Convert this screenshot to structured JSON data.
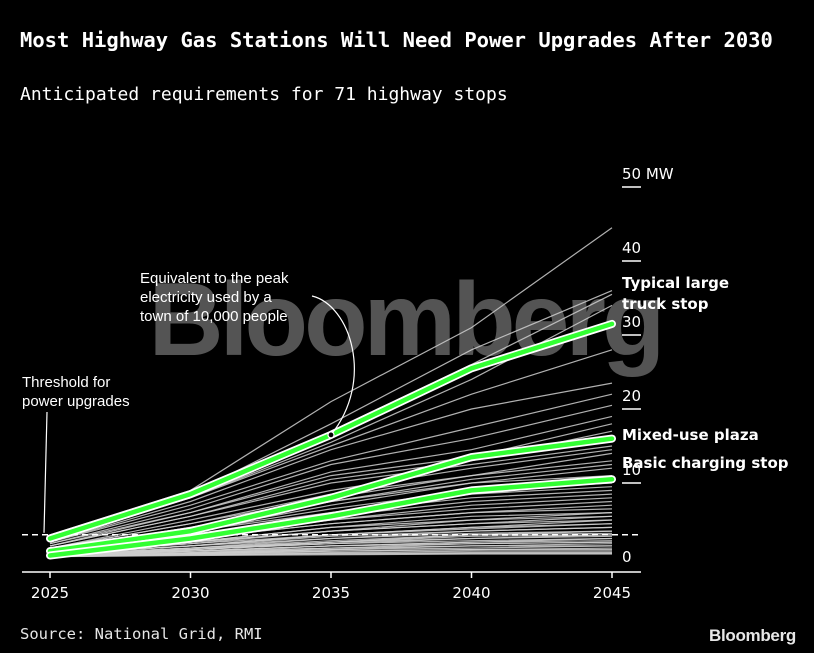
{
  "title": "Most Highway Gas Stations Will Need Power Upgrades After 2030",
  "subtitle": "Anticipated requirements for 71 highway stops",
  "source": "Source: National Grid, RMI",
  "logo": "Bloomberg",
  "watermark": "Bloomberg",
  "colors": {
    "background": "#000000",
    "highlight": "#33ff33",
    "background_lines": "#cfcfcf",
    "text": "#ffffff"
  },
  "chart_data": {
    "type": "line",
    "x": [
      2025,
      2030,
      2035,
      2040,
      2045
    ],
    "ylim": [
      0,
      50
    ],
    "yticks": [
      0,
      10,
      20,
      30,
      40,
      50
    ],
    "ytick_labels": [
      "0",
      "10",
      "20",
      "30",
      "40",
      "50 MW"
    ],
    "xtick_labels": [
      "2025",
      "2030",
      "2035",
      "2040",
      "2045"
    ],
    "threshold": 3,
    "grid": false,
    "highlighted_series": [
      {
        "name": "Typical large truck stop",
        "values": [
          2.5,
          8.5,
          16.5,
          25.5,
          31.5
        ]
      },
      {
        "name": "Mixed-use plaza",
        "values": [
          0.8,
          3.5,
          8,
          13.5,
          16
        ]
      },
      {
        "name": "Basic charging stop",
        "values": [
          0.2,
          2.5,
          5.5,
          9,
          10.5
        ]
      }
    ],
    "background_series": [
      [
        3,
        9,
        21,
        31,
        44.5
      ],
      [
        2.5,
        8.5,
        18,
        28,
        36
      ],
      [
        2.5,
        8,
        17,
        26,
        35.5
      ],
      [
        2.2,
        8,
        15.5,
        24,
        34
      ],
      [
        2,
        8,
        15,
        22,
        28
      ],
      [
        2,
        7.5,
        14.5,
        20,
        23.5
      ],
      [
        2,
        7,
        13,
        17.5,
        22
      ],
      [
        1.8,
        6.5,
        12.5,
        16,
        20.5
      ],
      [
        1.8,
        6,
        11.5,
        14.5,
        19
      ],
      [
        1.5,
        6,
        11,
        13.5,
        18
      ],
      [
        1.5,
        5.5,
        10.5,
        13,
        17
      ],
      [
        1.5,
        5.5,
        10,
        12.5,
        15
      ],
      [
        1.2,
        5,
        9,
        12,
        14.5
      ],
      [
        1.2,
        4.5,
        8.5,
        11,
        14
      ],
      [
        1.2,
        4.5,
        8,
        11,
        13
      ],
      [
        1,
        4,
        7.5,
        10.5,
        12.5
      ],
      [
        1,
        4,
        7.5,
        10,
        12
      ],
      [
        1,
        3.5,
        7,
        10,
        11
      ],
      [
        1,
        3.5,
        6.5,
        9,
        10
      ],
      [
        0.8,
        3.5,
        6,
        8.5,
        9.5
      ],
      [
        0.8,
        3,
        6,
        8,
        9
      ],
      [
        0.8,
        3,
        5.5,
        7.5,
        8.5
      ],
      [
        0.8,
        3,
        5,
        7,
        8
      ],
      [
        0.6,
        2.5,
        5,
        6.5,
        7.5
      ],
      [
        0.6,
        2.5,
        4.5,
        6,
        7
      ],
      [
        0.6,
        2.5,
        4.5,
        6,
        6.5
      ],
      [
        0.6,
        2,
        4,
        5.5,
        6
      ],
      [
        0.5,
        2,
        4,
        5,
        6
      ],
      [
        0.5,
        2,
        3.5,
        5,
        5.5
      ],
      [
        0.5,
        2,
        3.5,
        4.5,
        5.5
      ],
      [
        0.5,
        1.8,
        3.5,
        4.5,
        5
      ],
      [
        0.4,
        1.8,
        3,
        4,
        5
      ],
      [
        0.4,
        1.5,
        3,
        4,
        4.5
      ],
      [
        0.4,
        1.5,
        3,
        3.8,
        4.5
      ],
      [
        0.4,
        1.5,
        2.8,
        3.5,
        4
      ],
      [
        0.3,
        1.5,
        2.5,
        3.5,
        4
      ],
      [
        0.3,
        1.2,
        2.5,
        3.2,
        3.5
      ],
      [
        0.3,
        1.2,
        2.2,
        3,
        3.5
      ],
      [
        0.3,
        1.2,
        2,
        3,
        3.2
      ],
      [
        0.3,
        1,
        2,
        2.8,
        3
      ],
      [
        0.2,
        1,
        2,
        2.5,
        3
      ],
      [
        0.2,
        1,
        1.8,
        2.5,
        2.8
      ],
      [
        0.2,
        1,
        1.8,
        2.2,
        2.5
      ],
      [
        0.2,
        0.8,
        1.5,
        2,
        2.5
      ],
      [
        0.2,
        0.8,
        1.5,
        2,
        2.2
      ],
      [
        0.2,
        0.8,
        1.5,
        1.8,
        2
      ],
      [
        0.1,
        0.8,
        1.2,
        1.8,
        2
      ],
      [
        0.1,
        0.6,
        1.2,
        1.5,
        1.8
      ],
      [
        0.1,
        0.6,
        1,
        1.5,
        1.5
      ],
      [
        0.1,
        0.5,
        1,
        1.2,
        1.5
      ],
      [
        0.1,
        0.5,
        0.8,
        1,
        1.2
      ],
      [
        0.1,
        0.4,
        0.8,
        1,
        1
      ],
      [
        0.05,
        0.4,
        0.6,
        0.8,
        0.8
      ],
      [
        0.05,
        0.3,
        0.5,
        0.6,
        0.6
      ],
      [
        0.05,
        0.3,
        0.4,
        0.5,
        0.5
      ],
      [
        0.05,
        0.2,
        0.3,
        0.4,
        0.4
      ]
    ],
    "annotations": [
      {
        "text": "Equivalent to the peak electricity used by a town of 10,000 people",
        "x": 2035,
        "y": 16.5
      },
      {
        "text": "Threshold for power upgrades",
        "x": 2025,
        "y": 3
      }
    ]
  }
}
